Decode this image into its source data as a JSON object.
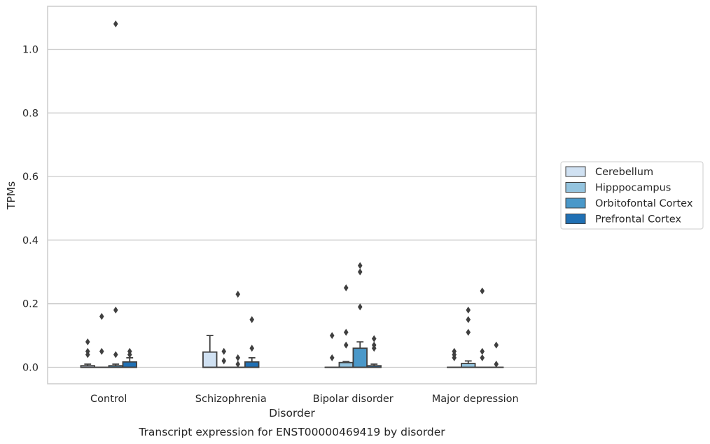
{
  "chart_data": {
    "type": "box",
    "title": "",
    "caption": "Transcript expression for ENST00000469419 by disorder",
    "xlabel": "Disorder",
    "ylabel": "TPMs",
    "ylim": [
      -0.05,
      1.13
    ],
    "yticks": [
      0.0,
      0.2,
      0.4,
      0.6,
      0.8,
      1.0
    ],
    "ytick_labels": [
      "0.0",
      "0.2",
      "0.4",
      "0.6",
      "0.8",
      "1.0"
    ],
    "grid": "horizontal",
    "legend_position": "right",
    "categories": [
      "Control",
      "Schizophrenia",
      "Bipolar disorder",
      "Major depression"
    ],
    "series": [
      {
        "name": "Cerebellum",
        "color": "#d0e1f2",
        "boxes": [
          {
            "q1": 0.0,
            "median": 0.0,
            "q3": 0.005,
            "whisker_low": 0.0,
            "whisker_high": 0.01,
            "outliers": [
              0.04,
              0.05,
              0.08
            ]
          },
          {
            "q1": 0.0,
            "median": 0.0,
            "q3": 0.048,
            "whisker_low": 0.0,
            "whisker_high": 0.1,
            "outliers": []
          },
          {
            "q1": 0.0,
            "median": 0.0,
            "q3": 0.0,
            "whisker_low": 0.0,
            "whisker_high": 0.0,
            "outliers": [
              0.03,
              0.1
            ]
          },
          {
            "q1": 0.0,
            "median": 0.0,
            "q3": 0.0,
            "whisker_low": 0.0,
            "whisker_high": 0.0,
            "outliers": [
              0.03,
              0.04,
              0.05
            ]
          }
        ]
      },
      {
        "name": "Hipppocampus",
        "color": "#94c4df",
        "boxes": [
          {
            "q1": 0.0,
            "median": 0.0,
            "q3": 0.0,
            "whisker_low": 0.0,
            "whisker_high": 0.0,
            "outliers": [
              0.05,
              0.16
            ]
          },
          {
            "q1": 0.0,
            "median": 0.0,
            "q3": 0.0,
            "whisker_low": 0.0,
            "whisker_high": 0.0,
            "outliers": [
              0.02,
              0.05
            ]
          },
          {
            "q1": 0.0,
            "median": 0.0,
            "q3": 0.015,
            "whisker_low": 0.0,
            "whisker_high": 0.018,
            "outliers": [
              0.07,
              0.11,
              0.25
            ]
          },
          {
            "q1": 0.0,
            "median": 0.0,
            "q3": 0.012,
            "whisker_low": 0.0,
            "whisker_high": 0.02,
            "outliers": [
              0.11,
              0.15,
              0.18
            ]
          }
        ]
      },
      {
        "name": "Orbitofontal Cortex",
        "color": "#4a98c9",
        "boxes": [
          {
            "q1": 0.0,
            "median": 0.0,
            "q3": 0.005,
            "whisker_low": 0.0,
            "whisker_high": 0.01,
            "outliers": [
              0.04,
              0.18,
              1.08
            ]
          },
          {
            "q1": 0.0,
            "median": 0.0,
            "q3": 0.0,
            "whisker_low": 0.0,
            "whisker_high": 0.0,
            "outliers": [
              0.01,
              0.03,
              0.23
            ]
          },
          {
            "q1": 0.0,
            "median": 0.0,
            "q3": 0.06,
            "whisker_low": 0.0,
            "whisker_high": 0.08,
            "outliers": [
              0.19,
              0.3,
              0.32
            ]
          },
          {
            "q1": 0.0,
            "median": 0.0,
            "q3": 0.0,
            "whisker_low": 0.0,
            "whisker_high": 0.0,
            "outliers": [
              0.03,
              0.05,
              0.24
            ]
          }
        ]
      },
      {
        "name": "Prefrontal Cortex",
        "color": "#2070b4",
        "boxes": [
          {
            "q1": 0.0,
            "median": 0.0,
            "q3": 0.017,
            "whisker_low": 0.0,
            "whisker_high": 0.03,
            "outliers": [
              0.04,
              0.05
            ]
          },
          {
            "q1": 0.0,
            "median": 0.0,
            "q3": 0.017,
            "whisker_low": 0.0,
            "whisker_high": 0.03,
            "outliers": [
              0.06,
              0.15
            ]
          },
          {
            "q1": 0.0,
            "median": 0.0,
            "q3": 0.005,
            "whisker_low": 0.0,
            "whisker_high": 0.01,
            "outliers": [
              0.06,
              0.07,
              0.09
            ]
          },
          {
            "q1": 0.0,
            "median": 0.0,
            "q3": 0.0,
            "whisker_low": 0.0,
            "whisker_high": 0.0,
            "outliers": [
              0.01,
              0.07
            ]
          }
        ]
      }
    ]
  }
}
